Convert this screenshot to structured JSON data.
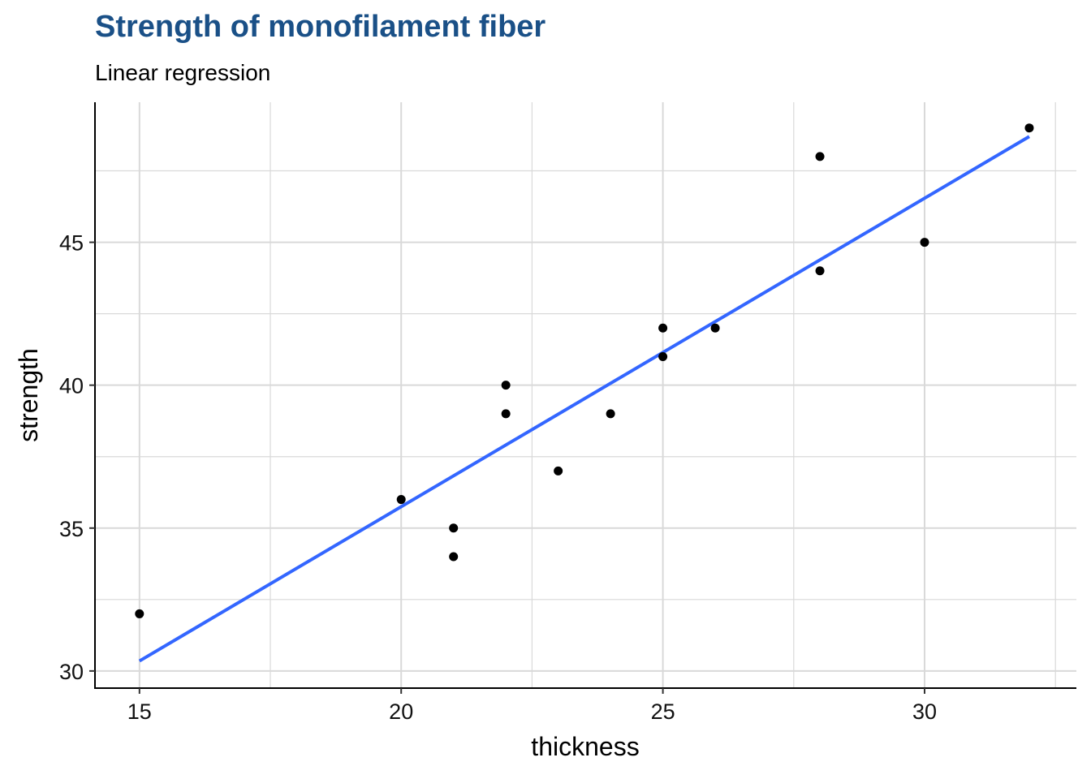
{
  "chart_data": {
    "type": "scatter",
    "title": "Strength of monofilament fiber",
    "subtitle": "Linear regression",
    "xlabel": "thickness",
    "ylabel": "strength",
    "xlim": [
      14.15,
      32.9
    ],
    "ylim": [
      29.4,
      49.9
    ],
    "xticks": [
      15,
      20,
      25,
      30
    ],
    "yticks": [
      30,
      35,
      40,
      45
    ],
    "xminor": [
      17.5,
      22.5,
      27.5,
      32.5
    ],
    "yminor": [
      32.5,
      37.5,
      42.5,
      47.5
    ],
    "grid": true,
    "points": [
      {
        "x": 15,
        "y": 32
      },
      {
        "x": 20,
        "y": 36
      },
      {
        "x": 21,
        "y": 35
      },
      {
        "x": 21,
        "y": 34
      },
      {
        "x": 22,
        "y": 40
      },
      {
        "x": 22,
        "y": 39
      },
      {
        "x": 23,
        "y": 37
      },
      {
        "x": 24,
        "y": 39
      },
      {
        "x": 25,
        "y": 42
      },
      {
        "x": 25,
        "y": 41
      },
      {
        "x": 26,
        "y": 42
      },
      {
        "x": 28,
        "y": 48
      },
      {
        "x": 28,
        "y": 44
      },
      {
        "x": 30,
        "y": 45
      },
      {
        "x": 32,
        "y": 49
      }
    ],
    "regression": {
      "x_start": 15,
      "y_start": 30.35,
      "x_end": 32,
      "y_end": 48.7
    },
    "colors": {
      "points": "#000000",
      "line": "#3366ff",
      "grid": "#d9d9d9",
      "title": "#1a5087"
    }
  }
}
